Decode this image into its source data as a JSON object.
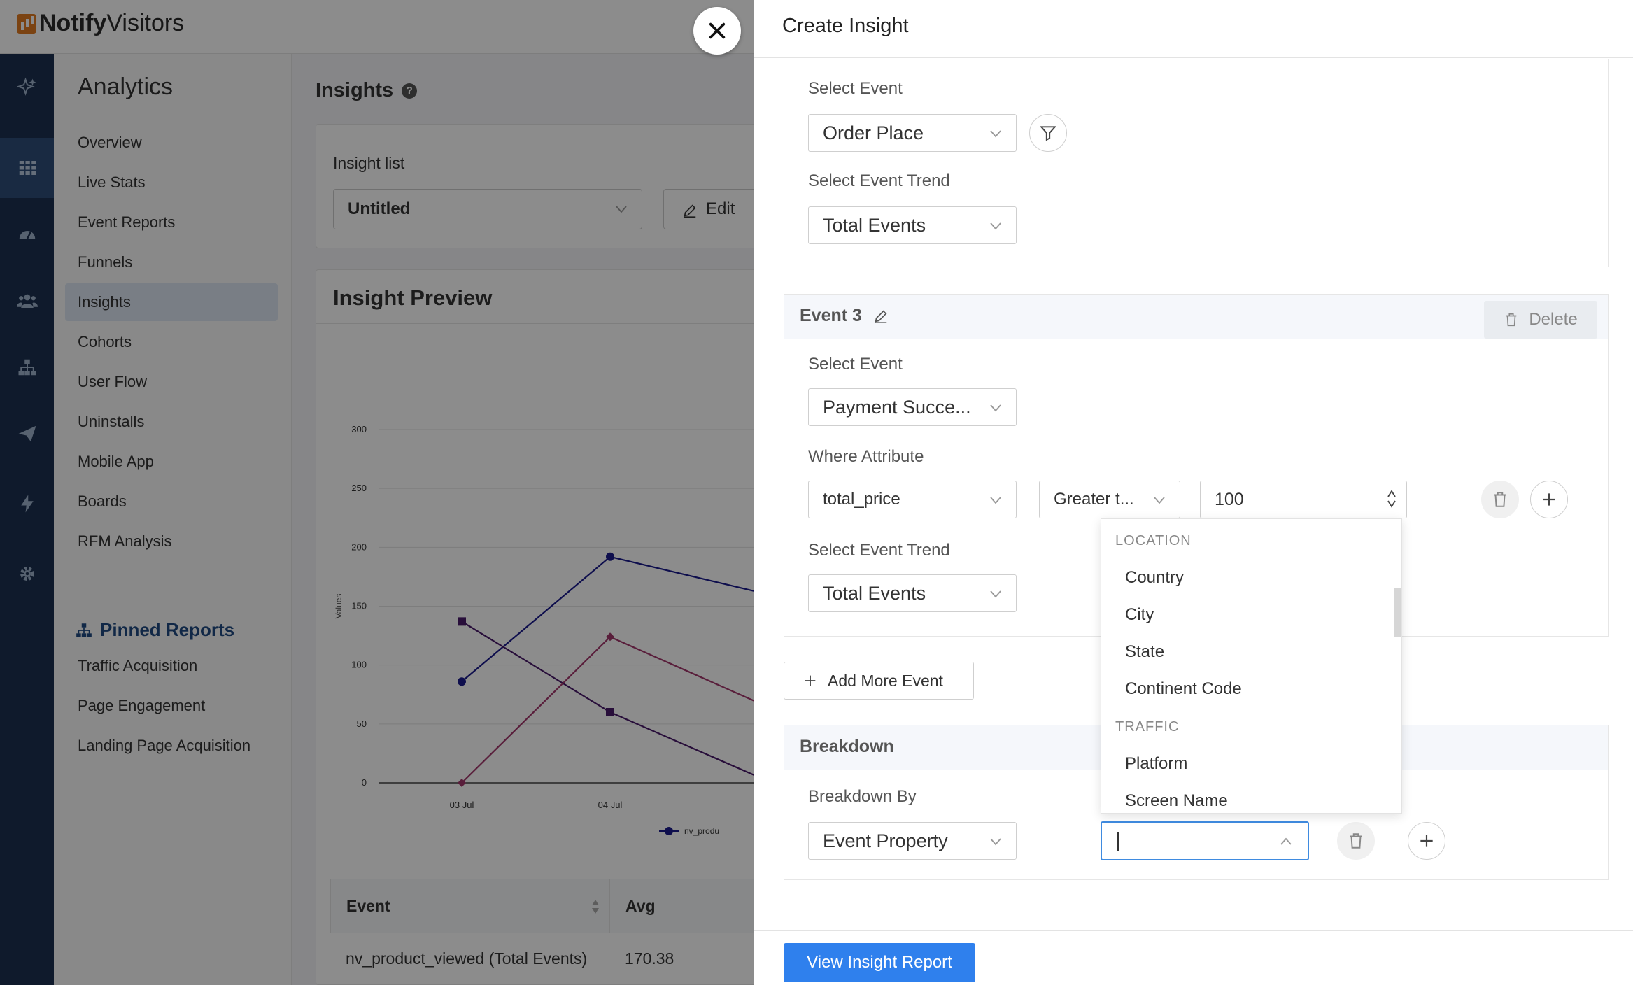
{
  "app": {
    "logo_bold": "Notify",
    "logo_light": "Visitors"
  },
  "sidebar": {
    "title": "Analytics",
    "items": [
      "Overview",
      "Live Stats",
      "Event Reports",
      "Funnels",
      "Insights",
      "Cohorts",
      "User Flow",
      "Uninstalls",
      "Mobile App",
      "Boards",
      "RFM Analysis"
    ],
    "active": "Insights",
    "pinned_title": "Pinned Reports",
    "pinned_items": [
      "Traffic Acquisition",
      "Page Engagement",
      "Landing Page Acquisition"
    ]
  },
  "main": {
    "page_title": "Insights",
    "help_glyph": "?",
    "insight_list_label": "Insight list",
    "insight_list_value": "Untitled",
    "edit_label": "Edit",
    "preview_title": "Insight Preview"
  },
  "chart_data": {
    "type": "line",
    "ylabel": "Values",
    "yticks": [
      0,
      50,
      100,
      150,
      200,
      250,
      300
    ],
    "ylim": [
      0,
      300
    ],
    "categories": [
      "03 Jul",
      "04 Jul",
      ""
    ],
    "series": [
      {
        "name": "nv_produ",
        "color": "#1a1a8c",
        "marker": "circle",
        "values": [
          86,
          192,
          162
        ]
      },
      {
        "name": "",
        "color": "#4a1a6b",
        "marker": "square",
        "values": [
          137,
          60,
          5
        ]
      },
      {
        "name": "",
        "color": "#a3386c",
        "marker": "diamond",
        "values": [
          0,
          124,
          68
        ]
      }
    ],
    "legend_label": "nv_produ"
  },
  "table": {
    "headers": [
      "Event",
      "Avg"
    ],
    "rows": [
      [
        "nv_product_viewed (Total Events)",
        "170.38"
      ]
    ]
  },
  "drawer": {
    "title": "Create Insight",
    "event2": {
      "select_event_label": "Select Event",
      "select_event_value": "Order Place",
      "trend_label": "Select Event Trend",
      "trend_value": "Total Events"
    },
    "event3": {
      "title": "Event 3",
      "delete_label": "Delete",
      "select_event_label": "Select Event",
      "select_event_value": "Payment Succe...",
      "where_label": "Where Attribute",
      "attribute_value": "total_price",
      "operator_value": "Greater t...",
      "number_value": "100",
      "trend_label": "Select Event Trend",
      "trend_value": "Total Events"
    },
    "add_more_label": "Add More Event",
    "breakdown": {
      "title": "Breakdown",
      "by_label": "Breakdown By",
      "by_value": "Event Property"
    },
    "menu": {
      "groups": [
        {
          "label": "LOCATION",
          "options": [
            "Country",
            "City",
            "State",
            "Continent Code"
          ]
        },
        {
          "label": "TRAFFIC",
          "options": [
            "Platform",
            "Screen Name"
          ]
        }
      ]
    },
    "view_report_label": "View Insight Report"
  }
}
